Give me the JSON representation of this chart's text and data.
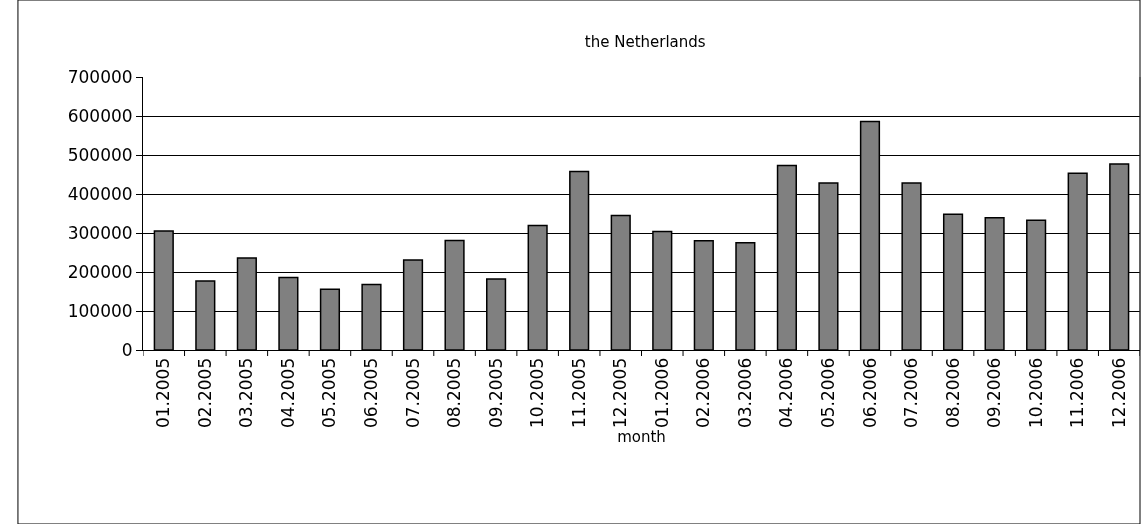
{
  "chart_data": {
    "type": "bar",
    "title": "the Netherlands",
    "xlabel": "month",
    "categories": [
      "01.2005",
      "02.2005",
      "03.2005",
      "04.2005",
      "05.2005",
      "06.2005",
      "07.2005",
      "08.2005",
      "09.2005",
      "10.2005",
      "11.2005",
      "12.2005",
      "01.2006",
      "02.2006",
      "03.2006",
      "04.2006",
      "05.2006",
      "06.2006",
      "07.2006",
      "08.2006",
      "09.2006",
      "10.2006",
      "11.2006",
      "12.2006"
    ],
    "values": [
      305000,
      177000,
      236000,
      186000,
      156000,
      168000,
      231000,
      281000,
      182000,
      319000,
      458000,
      345000,
      304000,
      280000,
      275000,
      473000,
      428000,
      586000,
      428000,
      348000,
      339000,
      333000,
      453000,
      477000
    ],
    "color": "#808080",
    "ylim": [
      0,
      700000
    ],
    "yticks": [
      0,
      100000,
      200000,
      300000,
      400000,
      500000,
      600000,
      700000
    ],
    "grid": "y",
    "legend": false
  }
}
